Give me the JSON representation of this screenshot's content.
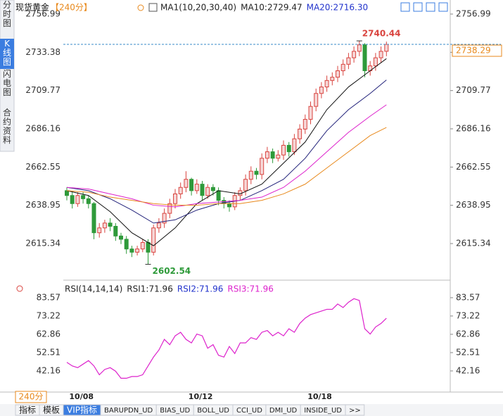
{
  "sidebar": [
    "分时图",
    "K线图",
    "闪电图",
    "合约资料"
  ],
  "chart_data": [
    {
      "type": "candlestick",
      "title": "现货黄金",
      "period": "【240分】",
      "legend": [
        {
          "text": "MA1(10,20,30,40)",
          "color": "#222222"
        },
        {
          "text": "MA10:2729.47",
          "color": "#222222"
        },
        {
          "text": "MA20:2716.30",
          "color": "#2233cc"
        }
      ],
      "categories": [
        null,
        null,
        "10/08",
        null,
        null,
        null,
        null,
        null,
        null,
        null,
        null,
        null,
        null,
        null,
        null,
        null,
        null,
        null,
        null,
        null,
        null,
        null,
        null,
        null,
        "10/12",
        null,
        null,
        null,
        null,
        null,
        null,
        null,
        null,
        null,
        null,
        null,
        null,
        null,
        null,
        null,
        null,
        null,
        null,
        null,
        null,
        null,
        "10/18",
        null,
        null,
        null,
        null,
        null,
        null,
        null,
        null,
        null,
        null,
        null,
        null,
        null
      ],
      "open": [
        2648,
        2645,
        2640,
        2645,
        2643,
        2640,
        2622,
        2625,
        2628,
        2626,
        2620,
        2618,
        2612,
        2610,
        2612,
        2616,
        2610,
        2625,
        2628,
        2634,
        2640,
        2646,
        2650,
        2655,
        2648,
        2652,
        2645,
        2650,
        2648,
        2642,
        2640,
        2638,
        2645,
        2648,
        2655,
        2660,
        2658,
        2668,
        2672,
        2668,
        2670,
        2676,
        2672,
        2680,
        2686,
        2692,
        2700,
        2708,
        2712,
        2716,
        2718,
        2722,
        2726,
        2730,
        2734,
        2738,
        2722,
        2725,
        2730,
        2734
      ],
      "high": [
        2650,
        2647,
        2647,
        2647,
        2645,
        2641,
        2628,
        2630,
        2631,
        2628,
        2622,
        2620,
        2614,
        2614,
        2618,
        2618,
        2627,
        2631,
        2637,
        2643,
        2649,
        2653,
        2660,
        2656,
        2655,
        2654,
        2652,
        2652,
        2650,
        2644,
        2642,
        2647,
        2650,
        2658,
        2663,
        2662,
        2671,
        2675,
        2674,
        2673,
        2679,
        2678,
        2683,
        2689,
        2695,
        2703,
        2711,
        2715,
        2719,
        2721,
        2725,
        2729,
        2733,
        2737,
        2740.44,
        2739,
        2728,
        2733,
        2737,
        2740
      ],
      "low": [
        2642,
        2637,
        2638,
        2640,
        2637,
        2618,
        2619,
        2622,
        2623,
        2617,
        2615,
        2609,
        2607,
        2608,
        2610,
        2602.54,
        2608,
        2622,
        2625,
        2631,
        2637,
        2643,
        2647,
        2645,
        2646,
        2642,
        2643,
        2645,
        2639,
        2637,
        2635,
        2636,
        2642,
        2645,
        2652,
        2655,
        2655,
        2665,
        2665,
        2666,
        2667,
        2669,
        2670,
        2677,
        2683,
        2689,
        2697,
        2705,
        2709,
        2713,
        2715,
        2719,
        2723,
        2727,
        2731,
        2718,
        2719,
        2722,
        2727,
        2731
      ],
      "close": [
        2645,
        2640,
        2645,
        2643,
        2640,
        2622,
        2625,
        2628,
        2626,
        2620,
        2618,
        2612,
        2610,
        2612,
        2616,
        2610,
        2625,
        2628,
        2634,
        2640,
        2646,
        2650,
        2655,
        2648,
        2652,
        2645,
        2650,
        2648,
        2642,
        2640,
        2638,
        2645,
        2648,
        2655,
        2660,
        2658,
        2668,
        2672,
        2668,
        2670,
        2676,
        2672,
        2680,
        2686,
        2692,
        2700,
        2708,
        2712,
        2716,
        2718,
        2722,
        2726,
        2730,
        2734,
        2738,
        2722,
        2725,
        2730,
        2734,
        2738.29
      ],
      "up_color": "#d9443f",
      "down_color": "#2e9a3a",
      "ma_series": [
        {
          "color": "#111111",
          "x": [
            0,
            4,
            8,
            12,
            16,
            20,
            24,
            28,
            32,
            36,
            40,
            44,
            48,
            52,
            56,
            59
          ],
          "values": [
            2648,
            2645,
            2635,
            2622,
            2614,
            2625,
            2640,
            2648,
            2646,
            2652,
            2665,
            2678,
            2698,
            2712,
            2722,
            2729.47
          ]
        },
        {
          "color": "#22227a",
          "x": [
            0,
            4,
            8,
            12,
            16,
            20,
            24,
            28,
            32,
            36,
            40,
            44,
            48,
            52,
            56,
            59
          ],
          "values": [
            2650,
            2648,
            2643,
            2636,
            2628,
            2630,
            2636,
            2640,
            2642,
            2648,
            2655,
            2668,
            2685,
            2698,
            2708,
            2716.3
          ]
        },
        {
          "color": "#dd22cc",
          "x": [
            0,
            4,
            8,
            12,
            16,
            20,
            24,
            28,
            32,
            36,
            40,
            44,
            48,
            52,
            56,
            59
          ],
          "values": [
            2650,
            2649,
            2646,
            2643,
            2639,
            2638,
            2640,
            2641,
            2642,
            2644,
            2650,
            2660,
            2672,
            2684,
            2694,
            2701
          ]
        },
        {
          "color": "#e8891c",
          "x": [
            0,
            4,
            8,
            12,
            16,
            20,
            24,
            28,
            32,
            36,
            40,
            44,
            48,
            52,
            56,
            59
          ],
          "values": [
            2648,
            2647,
            2644,
            2642,
            2640,
            2639,
            2639,
            2640,
            2640,
            2642,
            2646,
            2652,
            2662,
            2672,
            2682,
            2687
          ]
        }
      ],
      "ylim": [
        2594.06,
        2763.5
      ],
      "yticks": [
        2756.99,
        2733.38,
        2709.77,
        2686.16,
        2662.55,
        2638.95,
        2615.34
      ]
    },
    {
      "type": "line",
      "title": "RSI(14,14,14)",
      "legend": [
        {
          "text": "RSI1:71.96",
          "color": "#222222"
        },
        {
          "text": "RSI2:71.96",
          "color": "#2233cc"
        },
        {
          "text": "RSI3:71.96",
          "color": "#dd22cc"
        }
      ],
      "series": [
        {
          "color": "#dd22cc",
          "values": [
            47,
            45,
            44,
            46,
            48,
            45,
            40,
            43,
            44,
            42,
            38,
            38,
            39,
            39,
            40,
            45,
            50,
            54,
            60,
            57,
            62,
            64,
            60,
            58,
            63,
            62,
            55,
            57,
            51,
            50,
            56,
            52,
            58,
            58,
            61,
            60,
            64,
            65,
            62,
            64,
            62,
            66,
            64,
            69,
            72,
            74,
            75,
            76,
            77,
            77,
            80,
            78,
            81,
            83,
            82,
            66,
            63,
            67,
            69,
            71.96
          ]
        }
      ],
      "ylim": [
        31.0,
        90.7
      ],
      "yticks": [
        83.57,
        73.22,
        62.86,
        52.51,
        42.16
      ]
    }
  ],
  "footer": {
    "period": "240分",
    "tabs": [
      "指标",
      "模板",
      "VIP指标",
      "BARUPDN_UD",
      "BIAS_UD",
      "BOLL_UD",
      "CCI_UD",
      "DMI_UD",
      "INSIDE_UD",
      ">>"
    ]
  }
}
